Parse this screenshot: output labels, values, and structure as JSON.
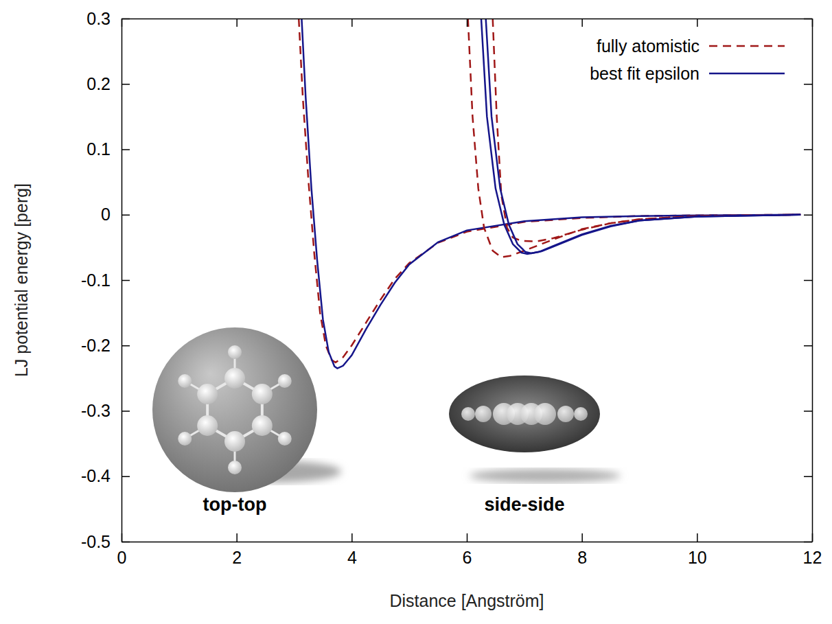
{
  "chart_data": {
    "type": "line",
    "x_label": "Distance [Angström]",
    "y_label": "LJ potential energy [perg]",
    "xlim": [
      0,
      12
    ],
    "ylim": [
      -0.5,
      0.3
    ],
    "xticks": [
      0,
      2,
      4,
      6,
      8,
      10,
      12
    ],
    "yticks": [
      -0.5,
      -0.4,
      -0.3,
      -0.2,
      -0.1,
      0,
      0.1,
      0.2,
      0.3
    ],
    "grid": false,
    "legend": "upper right",
    "series": [
      {
        "name": "fully atomistic",
        "color": "#a01818",
        "line_style": "dashed",
        "x": [
          3.08,
          3.15,
          3.25,
          3.35,
          3.45,
          3.55,
          3.65,
          3.72,
          3.85,
          4.0,
          4.25,
          4.5,
          4.75,
          5.0,
          5.5,
          6.0,
          7,
          8,
          9,
          10,
          11.8
        ],
        "values": [
          0.3,
          0.18,
          0.05,
          -0.06,
          -0.15,
          -0.2,
          -0.222,
          -0.226,
          -0.218,
          -0.2,
          -0.165,
          -0.13,
          -0.098,
          -0.074,
          -0.043,
          -0.026,
          -0.011,
          -0.005,
          -0.002,
          -0.001,
          0
        ]
      },
      {
        "name": "best fit epsilon",
        "color": "#15158a",
        "line_style": "solid",
        "x": [
          3.13,
          3.2,
          3.3,
          3.4,
          3.5,
          3.6,
          3.7,
          3.75,
          3.85,
          4.0,
          4.25,
          4.5,
          4.75,
          5.0,
          5.5,
          6.0,
          7,
          8,
          9,
          10,
          11.8
        ],
        "values": [
          0.3,
          0.18,
          0.04,
          -0.07,
          -0.16,
          -0.21,
          -0.232,
          -0.235,
          -0.231,
          -0.215,
          -0.175,
          -0.138,
          -0.104,
          -0.076,
          -0.042,
          -0.024,
          -0.01,
          -0.004,
          -0.002,
          -0.001,
          0
        ]
      },
      {
        "name": "fully atomistic",
        "color": "#a01818",
        "line_style": "dashed",
        "x": [
          6.02,
          6.1,
          6.2,
          6.3,
          6.45,
          6.6,
          6.75,
          7.0,
          7.5,
          8,
          8.5,
          9,
          10,
          11.8
        ],
        "values": [
          0.3,
          0.15,
          0.04,
          -0.02,
          -0.055,
          -0.065,
          -0.063,
          -0.055,
          -0.038,
          -0.022,
          -0.013,
          -0.007,
          -0.002,
          0
        ]
      },
      {
        "name": "fully atomistic",
        "color": "#a01818",
        "line_style": "dashed",
        "x": [
          6.45,
          6.52,
          6.6,
          6.7,
          6.8,
          6.95,
          7.2,
          7.5,
          8,
          8.5,
          9,
          10,
          11.8
        ],
        "values": [
          0.3,
          0.15,
          0.03,
          -0.02,
          -0.035,
          -0.04,
          -0.041,
          -0.036,
          -0.023,
          -0.013,
          -0.007,
          -0.002,
          0
        ]
      },
      {
        "name": "best fit epsilon",
        "color": "#15158a",
        "line_style": "solid",
        "x": [
          6.25,
          6.35,
          6.5,
          6.65,
          6.8,
          6.95,
          7.05,
          7.25,
          7.5,
          8,
          8.5,
          9,
          10,
          11.8
        ],
        "values": [
          0.3,
          0.15,
          0.04,
          -0.015,
          -0.045,
          -0.058,
          -0.06,
          -0.057,
          -0.048,
          -0.03,
          -0.017,
          -0.009,
          -0.003,
          0
        ]
      },
      {
        "name": "best fit epsilon",
        "color": "#15158a",
        "line_style": "solid",
        "x": [
          6.33,
          6.43,
          6.58,
          6.73,
          6.88,
          7.02,
          7.12,
          7.3,
          7.5,
          8,
          8.5,
          9,
          10,
          11.8
        ],
        "values": [
          0.3,
          0.15,
          0.04,
          -0.015,
          -0.045,
          -0.057,
          -0.059,
          -0.056,
          -0.049,
          -0.031,
          -0.018,
          -0.009,
          -0.003,
          0
        ]
      }
    ],
    "annotations": [
      {
        "text": "top-top"
      },
      {
        "text": "side-side"
      }
    ]
  }
}
